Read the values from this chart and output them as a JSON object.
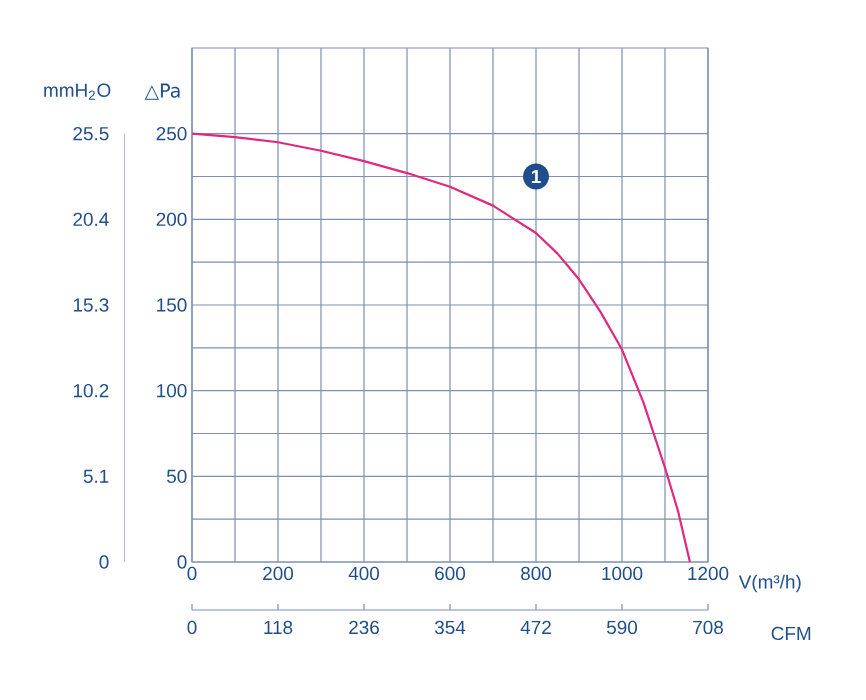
{
  "chart_data": {
    "type": "line",
    "xlabel": "V(m³/h)",
    "ylabel": "△Pa",
    "y2label": "mmH$_{2}$O",
    "x2label": "CFM",
    "x": [
      0,
      100,
      200,
      300,
      400,
      500,
      600,
      700,
      800,
      850,
      900,
      950,
      1000,
      1050,
      1100,
      1130,
      1158
    ],
    "values": [
      250,
      248,
      245,
      240,
      234,
      227,
      219,
      208,
      192,
      180,
      165,
      146,
      124,
      93,
      55,
      30,
      0
    ],
    "color": "#e0287d",
    "xlim": [
      0,
      1200
    ],
    "xticks": [
      0,
      200,
      400,
      600,
      800,
      1000,
      1200
    ],
    "ylim": [
      0,
      300
    ],
    "yticks": [
      0,
      50,
      100,
      150,
      200,
      250
    ],
    "y2lim": [
      0,
      30.6
    ],
    "y2ticks": [
      0,
      5.1,
      10.2,
      15.3,
      20.4,
      25.5
    ],
    "x2lim": [
      0,
      708
    ],
    "x2ticks": [
      0,
      118,
      236,
      354,
      472,
      590,
      708
    ],
    "grid": true,
    "annotations": [
      {
        "text": "1",
        "x": 800,
        "y": 225
      }
    ]
  }
}
